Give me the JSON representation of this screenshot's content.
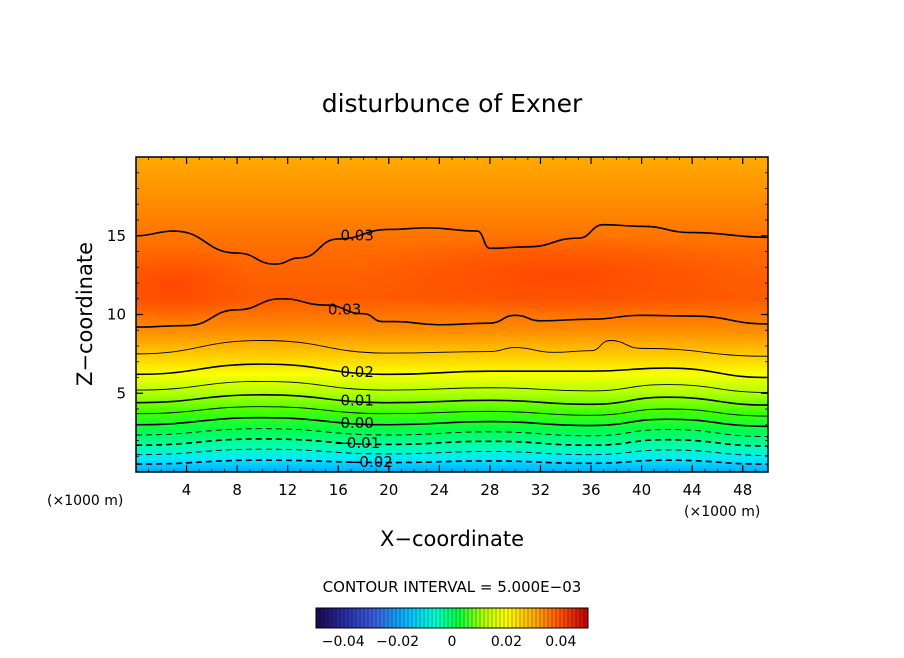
{
  "chart_data": {
    "type": "heatmap",
    "title": "disturbunce of Exner",
    "xlabel": "X−coordinate",
    "ylabel": "Z−coordinate",
    "x_unit": "(×1000 m)",
    "y_unit": "(×1000 m)",
    "xlim": [
      0,
      50
    ],
    "ylim": [
      0,
      20
    ],
    "x_ticks": [
      4,
      8,
      12,
      16,
      20,
      24,
      28,
      32,
      36,
      40,
      44,
      48
    ],
    "x_tick_labels": [
      "4",
      "8",
      "12",
      "16",
      "20",
      "24",
      "28",
      "32",
      "36",
      "40",
      "44",
      "48"
    ],
    "y_ticks": [
      5,
      10,
      15
    ],
    "y_tick_labels": [
      "5",
      "10",
      "15"
    ],
    "contour_interval_text": "CONTOUR INTERVAL = 5.000E−03",
    "contour_interval": 0.005,
    "colorbar": {
      "range": [
        -0.05,
        0.05
      ],
      "ticks": [
        -0.04,
        -0.02,
        0,
        0.02,
        0.04
      ],
      "tick_labels": [
        "−0.04",
        "−0.02",
        "0",
        "0.02",
        "0.04"
      ],
      "colormap": [
        "#1a0a4a",
        "#3030c8",
        "#00b4ff",
        "#00ffd8",
        "#00ff40",
        "#b8ff00",
        "#ffff00",
        "#ffc000",
        "#ff8000",
        "#ff4000",
        "#c00000"
      ]
    },
    "contour_levels": [
      {
        "level": -0.02,
        "label": "−0.02",
        "profile": [
          [
            0,
            0.5
          ],
          [
            10,
            0.75
          ],
          [
            20,
            0.6
          ],
          [
            28,
            0.7
          ],
          [
            36,
            0.55
          ],
          [
            42,
            0.75
          ],
          [
            50,
            0.5
          ]
        ]
      },
      {
        "level": -0.015,
        "label": "",
        "profile": [
          [
            0,
            1.1
          ],
          [
            10,
            1.45
          ],
          [
            20,
            1.15
          ],
          [
            28,
            1.3
          ],
          [
            36,
            1.1
          ],
          [
            42,
            1.4
          ],
          [
            50,
            1.05
          ]
        ]
      },
      {
        "level": -0.01,
        "label": "−0.01",
        "profile": [
          [
            0,
            1.7
          ],
          [
            10,
            2.1
          ],
          [
            20,
            1.75
          ],
          [
            28,
            1.95
          ],
          [
            36,
            1.7
          ],
          [
            42,
            2.05
          ],
          [
            50,
            1.65
          ]
        ]
      },
      {
        "level": -0.005,
        "label": "",
        "profile": [
          [
            0,
            2.35
          ],
          [
            10,
            2.75
          ],
          [
            20,
            2.35
          ],
          [
            28,
            2.55
          ],
          [
            36,
            2.3
          ],
          [
            42,
            2.7
          ],
          [
            50,
            2.25
          ]
        ]
      },
      {
        "level": 0.0,
        "label": "0.00",
        "profile": [
          [
            0,
            3.0
          ],
          [
            10,
            3.45
          ],
          [
            20,
            3.0
          ],
          [
            28,
            3.2
          ],
          [
            36,
            2.95
          ],
          [
            42,
            3.35
          ],
          [
            50,
            2.9
          ]
        ]
      },
      {
        "level": 0.005,
        "label": "",
        "profile": [
          [
            0,
            3.7
          ],
          [
            10,
            4.15
          ],
          [
            20,
            3.7
          ],
          [
            28,
            3.85
          ],
          [
            36,
            3.6
          ],
          [
            42,
            4.0
          ],
          [
            50,
            3.55
          ]
        ]
      },
      {
        "level": 0.01,
        "label": "0.01",
        "profile": [
          [
            0,
            4.4
          ],
          [
            10,
            4.9
          ],
          [
            20,
            4.4
          ],
          [
            28,
            4.55
          ],
          [
            36,
            4.3
          ],
          [
            42,
            4.75
          ],
          [
            50,
            4.25
          ]
        ]
      },
      {
        "level": 0.015,
        "label": "",
        "profile": [
          [
            0,
            5.2
          ],
          [
            10,
            5.75
          ],
          [
            20,
            5.2
          ],
          [
            28,
            5.35
          ],
          [
            36,
            5.15
          ],
          [
            42,
            5.55
          ],
          [
            50,
            5.05
          ]
        ]
      },
      {
        "level": 0.02,
        "label": "0.02",
        "profile": [
          [
            0,
            6.2
          ],
          [
            10,
            6.85
          ],
          [
            20,
            6.2
          ],
          [
            28,
            6.4
          ],
          [
            36,
            6.4
          ],
          [
            42,
            6.6
          ],
          [
            50,
            6.0
          ]
        ]
      },
      {
        "level": 0.025,
        "label": "",
        "profile": [
          [
            0,
            7.5
          ],
          [
            10,
            8.35
          ],
          [
            20,
            7.55
          ],
          [
            28,
            7.65
          ],
          [
            30,
            7.9
          ],
          [
            33,
            7.6
          ],
          [
            36,
            7.7
          ],
          [
            37.5,
            8.35
          ],
          [
            40,
            7.85
          ],
          [
            50,
            7.35
          ]
        ]
      },
      {
        "level": 0.03,
        "label": "0.03",
        "profile": [
          [
            0,
            9.2
          ],
          [
            4,
            9.3
          ],
          [
            8,
            10.3
          ],
          [
            11.5,
            11.0
          ],
          [
            15,
            10.6
          ],
          [
            18,
            10.05
          ],
          [
            19.5,
            9.55
          ],
          [
            20.5,
            9.55
          ],
          [
            24,
            9.35
          ],
          [
            28,
            9.45
          ],
          [
            30,
            9.95
          ],
          [
            32,
            9.6
          ],
          [
            36,
            9.7
          ],
          [
            40,
            9.95
          ],
          [
            44,
            9.9
          ],
          [
            50,
            9.4
          ]
        ]
      },
      {
        "level": 0.03,
        "label": "0.03",
        "profile": [
          [
            0,
            15.0
          ],
          [
            3,
            15.3
          ],
          [
            8,
            13.9
          ],
          [
            11,
            13.2
          ],
          [
            13,
            13.6
          ],
          [
            16,
            14.8
          ],
          [
            20,
            15.4
          ],
          [
            23,
            15.5
          ],
          [
            27,
            15.3
          ],
          [
            28,
            14.2
          ],
          [
            31,
            14.3
          ],
          [
            35,
            14.85
          ],
          [
            37,
            15.7
          ],
          [
            40,
            15.6
          ],
          [
            44,
            15.2
          ],
          [
            50,
            14.9
          ]
        ]
      }
    ]
  }
}
